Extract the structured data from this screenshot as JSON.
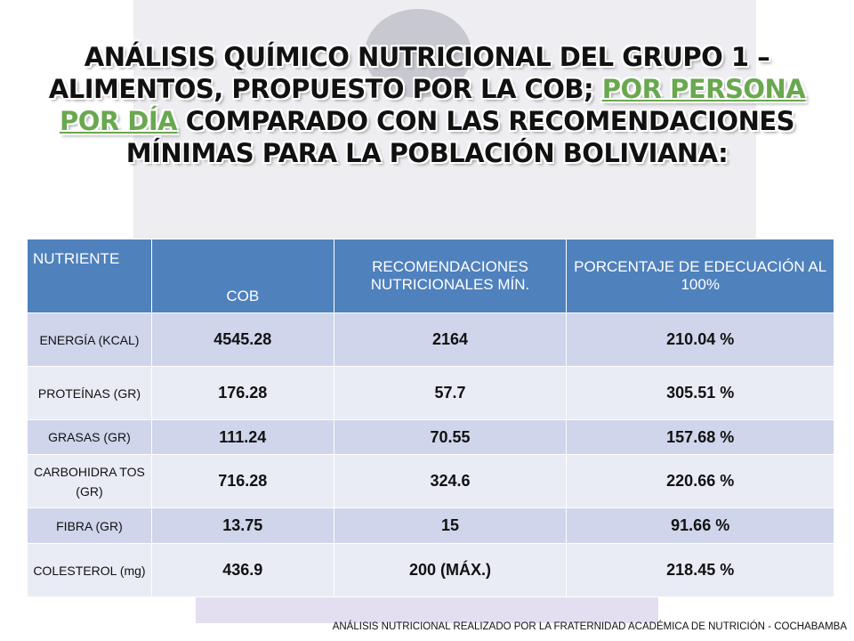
{
  "title": {
    "parts": [
      "ANÁLISIS QUÍMICO NUTRICIONAL DEL GRUPO 1 – ALIMENTOS, PROPUESTO POR LA COB; ",
      "POR PERSONA POR DÍA",
      " COMPARADO CON LAS RECOMENDACIONES MÍNIMAS PARA LA POBLACIÓN BOLIVIANA:"
    ]
  },
  "table": {
    "header": [
      "NUTRIENTE",
      "COB",
      "RECOMENDACIONES NUTRICIONALES MÍN.",
      "PORCENTAJE DE EDECUACIÓN AL 100%"
    ],
    "rows": [
      [
        "ENERGÍA (KCAL)",
        "4545.28",
        "2164",
        "210.04 %"
      ],
      [
        "PROTEÍNAS (GR)",
        "176.28",
        "57.7",
        "305.51 %"
      ],
      [
        "GRASAS (GR)",
        "111.24",
        "70.55",
        "157.68 %"
      ],
      [
        "CARBOHIDRA TOS (GR)",
        "716.28",
        "324.6",
        "220.66 %"
      ],
      [
        "FIBRA (GR)",
        "13.75",
        "15",
        "91.66 %"
      ],
      [
        "COLESTEROL (mg)",
        "436.9",
        "200 (MÁX.)",
        "218.45 %"
      ]
    ]
  },
  "footer": "ANÁLISIS NUTRICIONAL REALIZADO POR LA FRATERNIDAD ACADÉMICA DE NUTRICIÓN - COCHABAMBA"
}
